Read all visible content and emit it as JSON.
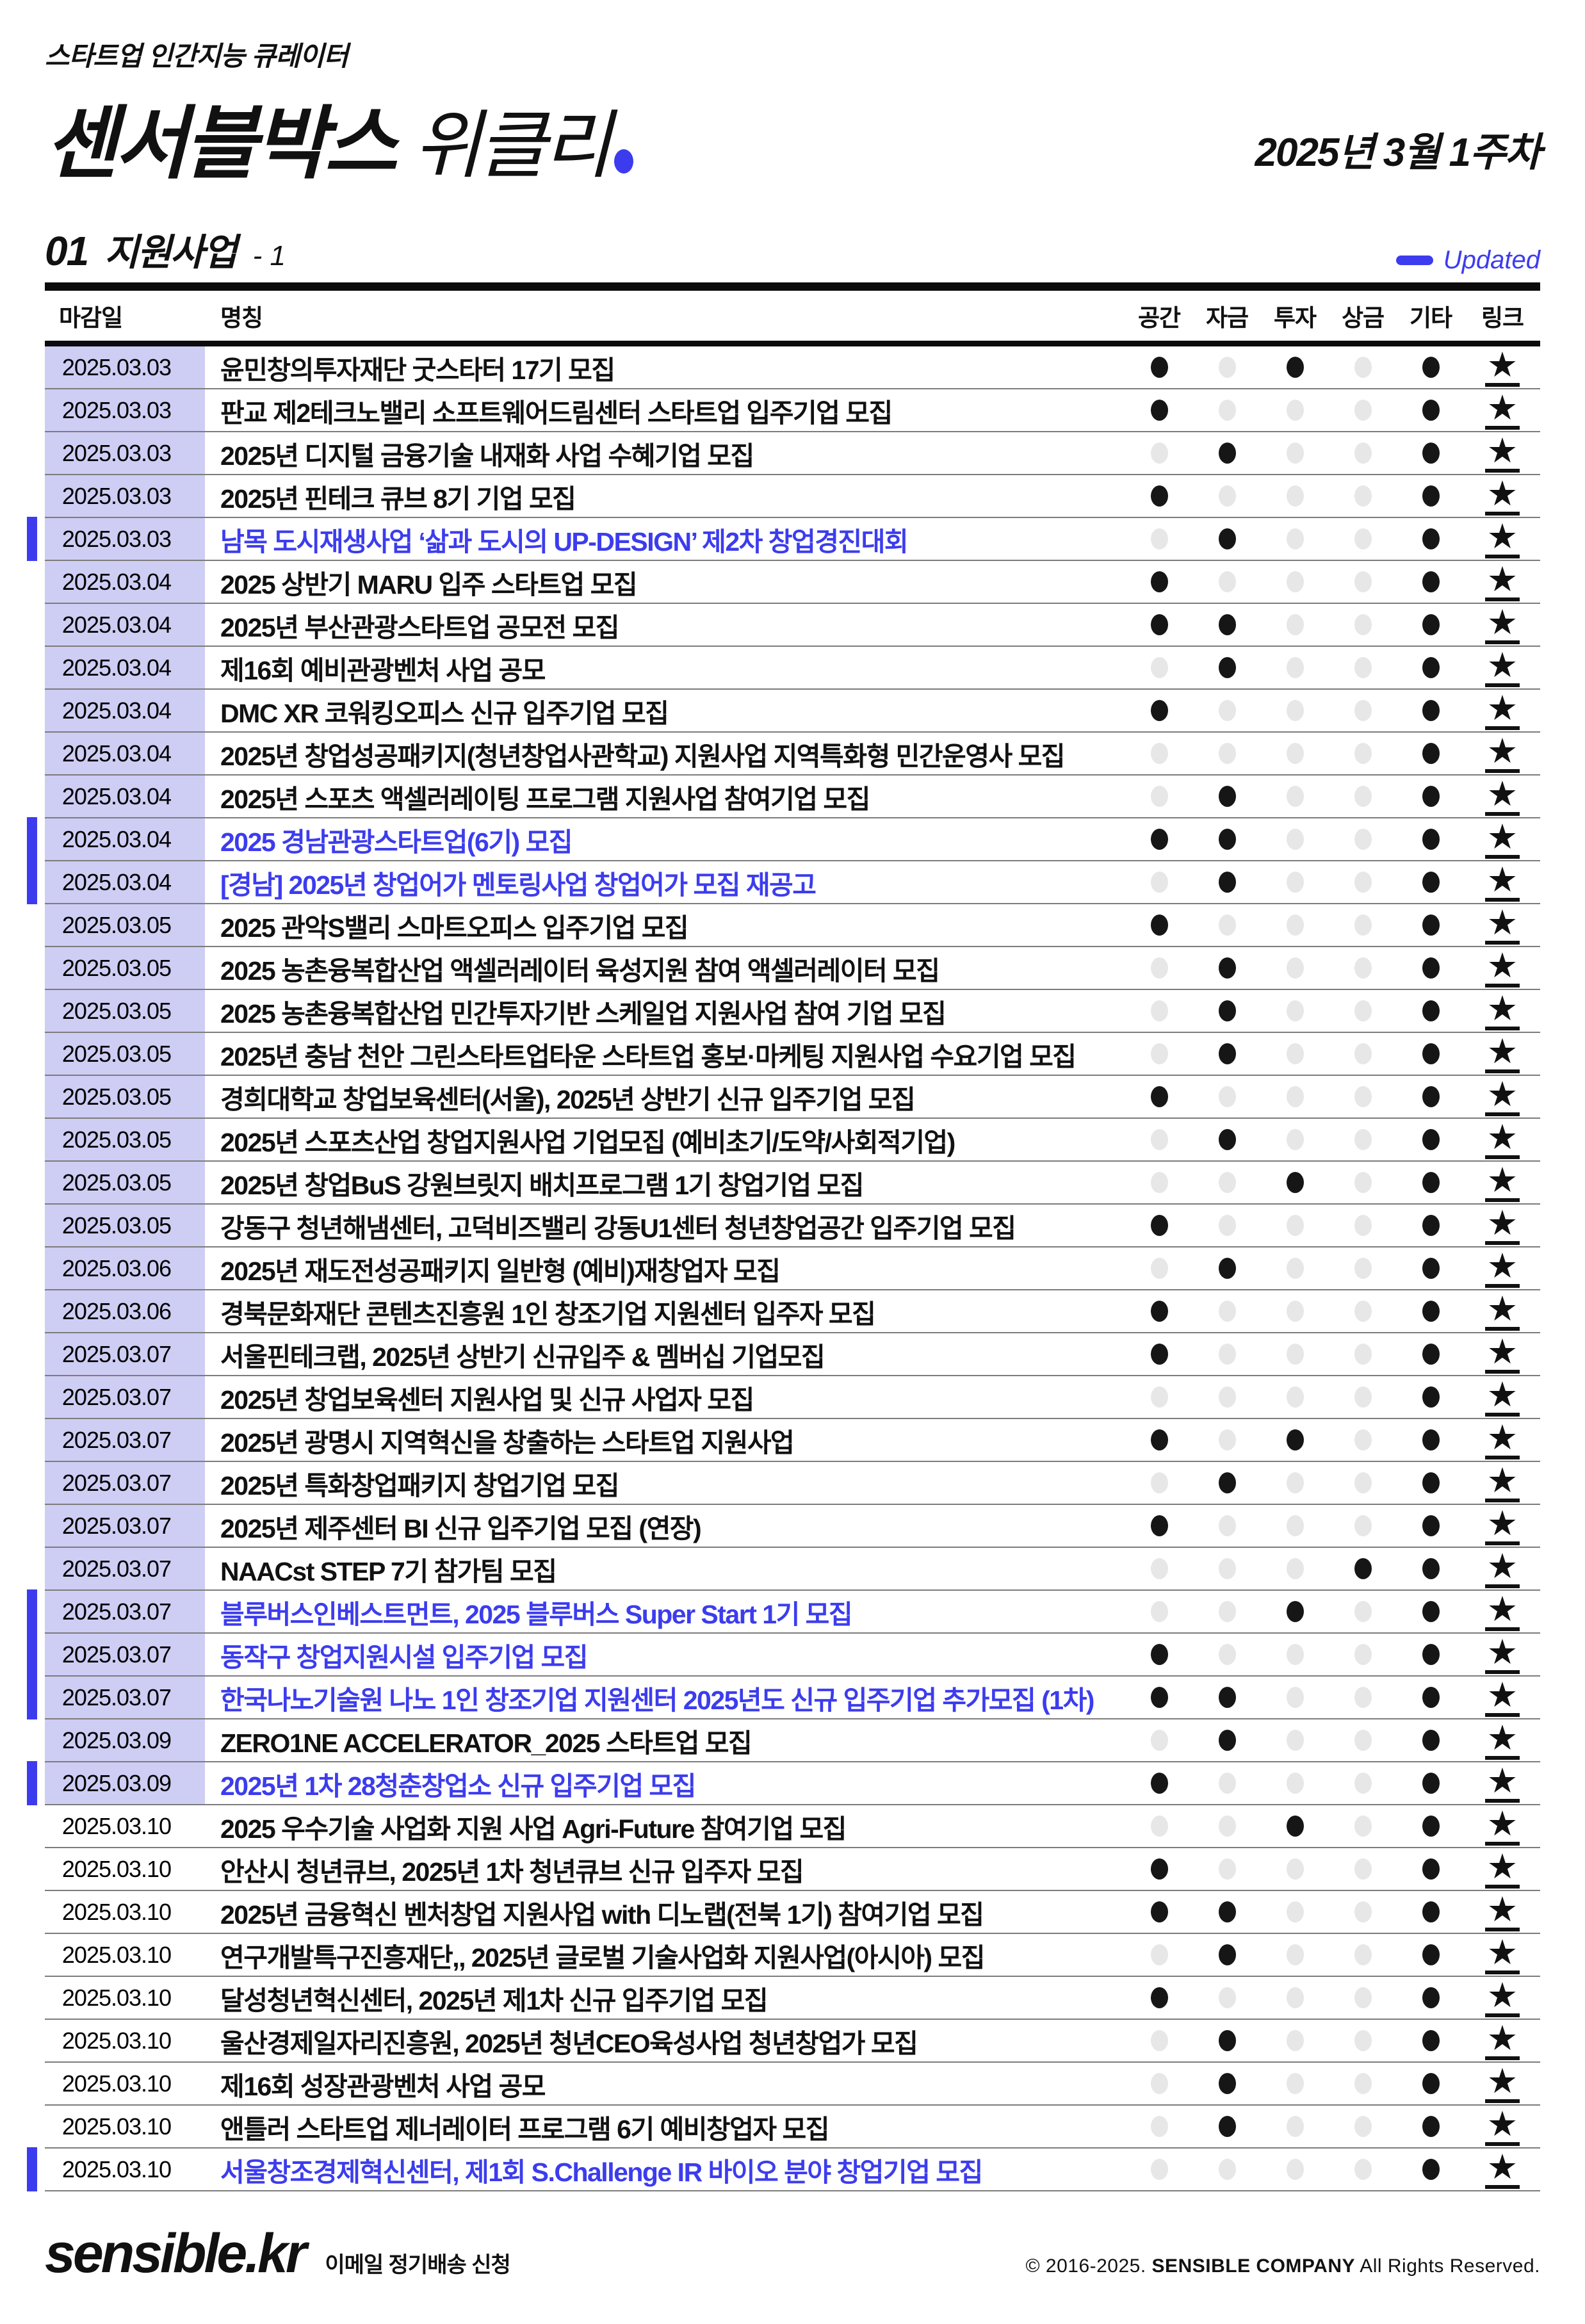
{
  "colors": {
    "accent_blue": "#3c3cee",
    "date_highlight": "#cecdf4",
    "dot_on": "#161616",
    "dot_off": "#e7e7e7"
  },
  "header": {
    "subtitle": "스타트업 인간지능 큐레이터",
    "title_bold": "센서블박스",
    "title_light": "위클리",
    "week_label": "2025년 3월 1주차",
    "section_no": "01",
    "section_title": "지원사업",
    "section_suffix": "- 1",
    "updated_label": "Updated"
  },
  "table": {
    "columns": {
      "deadline": "마감일",
      "name": "명칭",
      "dot_labels": [
        "공간",
        "자금",
        "투자",
        "상금",
        "기타"
      ],
      "link": "링크"
    },
    "link_glyph": "★",
    "rows": [
      {
        "date": "2025.03.03",
        "title": "윤민창의투자재단 굿스타터 17기 모집",
        "updated": false,
        "date_highlight": true,
        "dots": [
          1,
          0,
          1,
          0,
          1
        ]
      },
      {
        "date": "2025.03.03",
        "title": "판교 제2테크노밸리 소프트웨어드림센터 스타트업 입주기업 모집",
        "updated": false,
        "date_highlight": true,
        "dots": [
          1,
          0,
          0,
          0,
          1
        ]
      },
      {
        "date": "2025.03.03",
        "title": "2025년 디지털 금융기술 내재화 사업 수혜기업 모집",
        "updated": false,
        "date_highlight": true,
        "dots": [
          0,
          1,
          0,
          0,
          1
        ]
      },
      {
        "date": "2025.03.03",
        "title": "2025년 핀테크 큐브 8기 기업 모집",
        "updated": false,
        "date_highlight": true,
        "dots": [
          1,
          0,
          0,
          0,
          1
        ]
      },
      {
        "date": "2025.03.03",
        "title": "남목 도시재생사업 ‘삶과 도시의 UP-DESIGN’ 제2차 창업경진대회",
        "updated": true,
        "date_highlight": true,
        "dots": [
          0,
          1,
          0,
          0,
          1
        ]
      },
      {
        "date": "2025.03.04",
        "title": "2025 상반기 MARU 입주 스타트업 모집",
        "updated": false,
        "date_highlight": true,
        "dots": [
          1,
          0,
          0,
          0,
          1
        ]
      },
      {
        "date": "2025.03.04",
        "title": "2025년 부산관광스타트업 공모전 모집",
        "updated": false,
        "date_highlight": true,
        "dots": [
          1,
          1,
          0,
          0,
          1
        ]
      },
      {
        "date": "2025.03.04",
        "title": "제16회 예비관광벤처 사업 공모",
        "updated": false,
        "date_highlight": true,
        "dots": [
          0,
          1,
          0,
          0,
          1
        ]
      },
      {
        "date": "2025.03.04",
        "title": "DMC XR 코워킹오피스 신규 입주기업 모집",
        "updated": false,
        "date_highlight": true,
        "dots": [
          1,
          0,
          0,
          0,
          1
        ]
      },
      {
        "date": "2025.03.04",
        "title": "2025년 창업성공패키지(청년창업사관학교) 지원사업 지역특화형 민간운영사 모집",
        "updated": false,
        "date_highlight": true,
        "dots": [
          0,
          0,
          0,
          0,
          1
        ]
      },
      {
        "date": "2025.03.04",
        "title": "2025년 스포츠 액셀러레이팅 프로그램 지원사업 참여기업 모집",
        "updated": false,
        "date_highlight": true,
        "dots": [
          0,
          1,
          0,
          0,
          1
        ]
      },
      {
        "date": "2025.03.04",
        "title": "2025 경남관광스타트업(6기) 모집",
        "updated": true,
        "date_highlight": true,
        "dots": [
          1,
          1,
          0,
          0,
          1
        ]
      },
      {
        "date": "2025.03.04",
        "title": "[경남] 2025년 창업어가 멘토링사업 창업어가 모집 재공고",
        "updated": true,
        "date_highlight": true,
        "dots": [
          0,
          1,
          0,
          0,
          1
        ]
      },
      {
        "date": "2025.03.05",
        "title": "2025 관악S밸리 스마트오피스 입주기업 모집",
        "updated": false,
        "date_highlight": true,
        "dots": [
          1,
          0,
          0,
          0,
          1
        ]
      },
      {
        "date": "2025.03.05",
        "title": "2025 농촌융복합산업 액셀러레이터 육성지원 참여 액셀러레이터 모집",
        "updated": false,
        "date_highlight": true,
        "dots": [
          0,
          1,
          0,
          0,
          1
        ]
      },
      {
        "date": "2025.03.05",
        "title": "2025 농촌융복합산업 민간투자기반 스케일업 지원사업 참여 기업 모집",
        "updated": false,
        "date_highlight": true,
        "dots": [
          0,
          1,
          0,
          0,
          1
        ]
      },
      {
        "date": "2025.03.05",
        "title": "2025년 충남 천안 그린스타트업타운 스타트업 홍보·마케팅 지원사업 수요기업 모집",
        "updated": false,
        "date_highlight": true,
        "dots": [
          0,
          1,
          0,
          0,
          1
        ]
      },
      {
        "date": "2025.03.05",
        "title": "경희대학교 창업보육센터(서울), 2025년 상반기 신규 입주기업 모집",
        "updated": false,
        "date_highlight": true,
        "dots": [
          1,
          0,
          0,
          0,
          1
        ]
      },
      {
        "date": "2025.03.05",
        "title": "2025년 스포츠산업 창업지원사업 기업모집 (예비초기/도약/사회적기업)",
        "updated": false,
        "date_highlight": true,
        "dots": [
          0,
          1,
          0,
          0,
          1
        ]
      },
      {
        "date": "2025.03.05",
        "title": "2025년 창업BuS 강원브릿지 배치프로그램 1기 창업기업 모집",
        "updated": false,
        "date_highlight": true,
        "dots": [
          0,
          0,
          1,
          0,
          1
        ]
      },
      {
        "date": "2025.03.05",
        "title": "강동구 청년해냄센터, 고덕비즈밸리 강동U1센터 청년창업공간 입주기업 모집",
        "updated": false,
        "date_highlight": true,
        "dots": [
          1,
          0,
          0,
          0,
          1
        ]
      },
      {
        "date": "2025.03.06",
        "title": "2025년 재도전성공패키지 일반형 (예비)재창업자 모집",
        "updated": false,
        "date_highlight": true,
        "dots": [
          0,
          1,
          0,
          0,
          1
        ]
      },
      {
        "date": "2025.03.06",
        "title": "경북문화재단 콘텐츠진흥원 1인 창조기업 지원센터 입주자 모집",
        "updated": false,
        "date_highlight": true,
        "dots": [
          1,
          0,
          0,
          0,
          1
        ]
      },
      {
        "date": "2025.03.07",
        "title": "서울핀테크랩, 2025년 상반기 신규입주 & 멤버십 기업모집",
        "updated": false,
        "date_highlight": true,
        "dots": [
          1,
          0,
          0,
          0,
          1
        ]
      },
      {
        "date": "2025.03.07",
        "title": "2025년 창업보육센터 지원사업 및 신규 사업자 모집",
        "updated": false,
        "date_highlight": true,
        "dots": [
          0,
          0,
          0,
          0,
          1
        ]
      },
      {
        "date": "2025.03.07",
        "title": "2025년 광명시 지역혁신을 창출하는 스타트업 지원사업",
        "updated": false,
        "date_highlight": true,
        "dots": [
          1,
          0,
          1,
          0,
          1
        ]
      },
      {
        "date": "2025.03.07",
        "title": "2025년 특화창업패키지 창업기업 모집",
        "updated": false,
        "date_highlight": true,
        "dots": [
          0,
          1,
          0,
          0,
          1
        ]
      },
      {
        "date": "2025.03.07",
        "title": "2025년 제주센터 BI 신규 입주기업 모집 (연장)",
        "updated": false,
        "date_highlight": true,
        "dots": [
          1,
          0,
          0,
          0,
          1
        ]
      },
      {
        "date": "2025.03.07",
        "title": "NAACst STEP 7기 참가팀 모집",
        "updated": false,
        "date_highlight": true,
        "dots": [
          0,
          0,
          0,
          1,
          1
        ]
      },
      {
        "date": "2025.03.07",
        "title": "블루버스인베스트먼트, 2025 블루버스 Super Start 1기 모집",
        "updated": true,
        "date_highlight": true,
        "dots": [
          0,
          0,
          1,
          0,
          1
        ]
      },
      {
        "date": "2025.03.07",
        "title": "동작구 창업지원시설 입주기업 모집",
        "updated": true,
        "date_highlight": true,
        "dots": [
          1,
          0,
          0,
          0,
          1
        ]
      },
      {
        "date": "2025.03.07",
        "title": "한국나노기술원 나노 1인 창조기업 지원센터 2025년도 신규 입주기업 추가모집 (1차)",
        "updated": true,
        "date_highlight": true,
        "dots": [
          1,
          1,
          0,
          0,
          1
        ]
      },
      {
        "date": "2025.03.09",
        "title": "ZERO1NE ACCELERATOR_2025 스타트업 모집",
        "updated": false,
        "date_highlight": true,
        "dots": [
          0,
          1,
          0,
          0,
          1
        ]
      },
      {
        "date": "2025.03.09",
        "title": "2025년 1차 28청춘창업소 신규 입주기업 모집",
        "updated": true,
        "date_highlight": true,
        "dots": [
          1,
          0,
          0,
          0,
          1
        ]
      },
      {
        "date": "2025.03.10",
        "title": "2025 우수기술 사업화 지원 사업 Agri-Future 참여기업 모집",
        "updated": false,
        "date_highlight": false,
        "dots": [
          0,
          0,
          1,
          0,
          1
        ]
      },
      {
        "date": "2025.03.10",
        "title": "안산시 청년큐브, 2025년 1차 청년큐브 신규 입주자 모집",
        "updated": false,
        "date_highlight": false,
        "dots": [
          1,
          0,
          0,
          0,
          1
        ]
      },
      {
        "date": "2025.03.10",
        "title": "2025년 금융혁신 벤처창업 지원사업 with 디노랩(전북 1기) 참여기업 모집",
        "updated": false,
        "date_highlight": false,
        "dots": [
          1,
          1,
          0,
          0,
          1
        ]
      },
      {
        "date": "2025.03.10",
        "title": "연구개발특구진흥재단,, 2025년 글로벌 기술사업화 지원사업(아시아) 모집",
        "updated": false,
        "date_highlight": false,
        "dots": [
          0,
          1,
          0,
          0,
          1
        ]
      },
      {
        "date": "2025.03.10",
        "title": "달성청년혁신센터, 2025년 제1차 신규 입주기업 모집",
        "updated": false,
        "date_highlight": false,
        "dots": [
          1,
          0,
          0,
          0,
          1
        ]
      },
      {
        "date": "2025.03.10",
        "title": "울산경제일자리진흥원, 2025년 청년CEO육성사업 청년창업가 모집",
        "updated": false,
        "date_highlight": false,
        "dots": [
          0,
          1,
          0,
          0,
          1
        ]
      },
      {
        "date": "2025.03.10",
        "title": "제16회 성장관광벤처 사업 공모",
        "updated": false,
        "date_highlight": false,
        "dots": [
          0,
          1,
          0,
          0,
          1
        ]
      },
      {
        "date": "2025.03.10",
        "title": "앤틀러 스타트업 제너레이터 프로그램 6기 예비창업자 모집",
        "updated": false,
        "date_highlight": false,
        "dots": [
          0,
          1,
          0,
          0,
          1
        ]
      },
      {
        "date": "2025.03.10",
        "title": "서울창조경제혁신센터, 제1회 S.Challenge IR 바이오 분야 창업기업 모집",
        "updated": true,
        "date_highlight": false,
        "dots": [
          0,
          0,
          0,
          0,
          1
        ]
      }
    ]
  },
  "footer": {
    "brand": "sensible.kr",
    "subscribe": "이메일 정기배송 신청",
    "copyright_prefix": "© 2016-2025.",
    "company": "SENSIBLE COMPANY",
    "copyright_suffix": "All Rights Reserved."
  }
}
